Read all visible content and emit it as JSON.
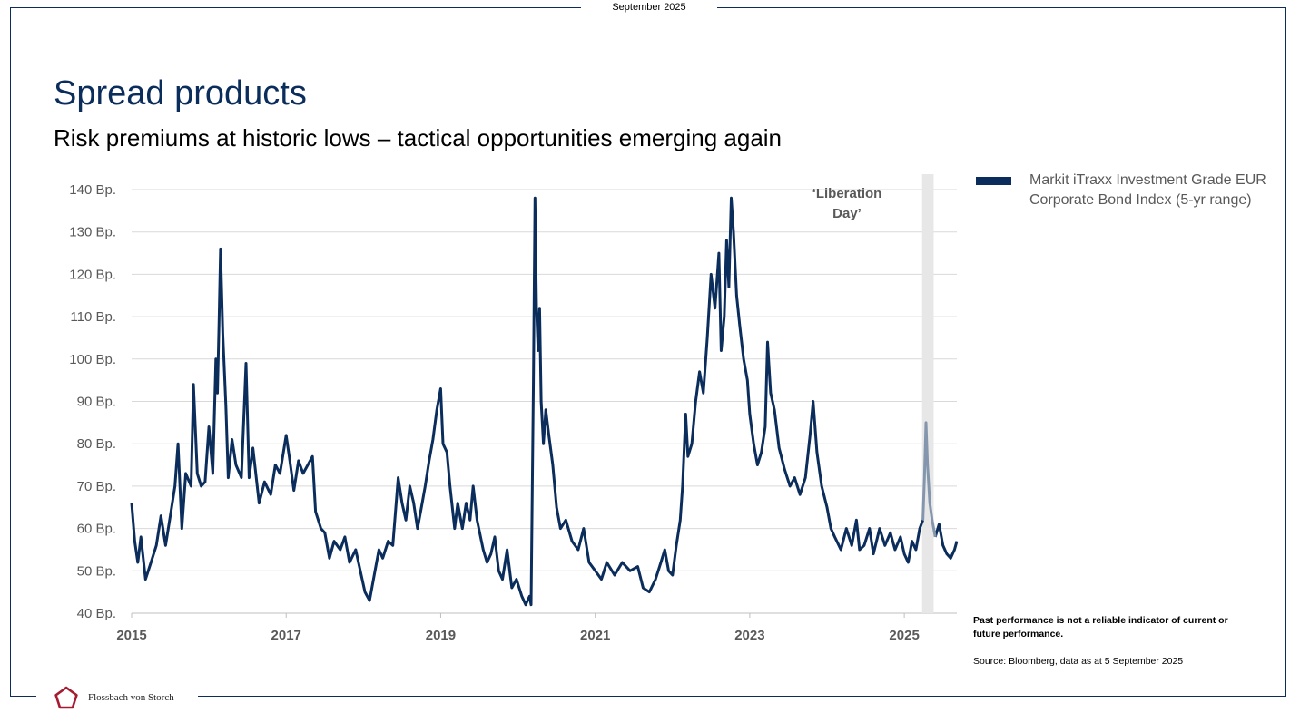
{
  "header": {
    "date": "September 2025"
  },
  "title": "Spread products",
  "subtitle": "Risk premiums at historic lows – tactical opportunities emerging again",
  "chart_data": {
    "type": "line",
    "ylim": [
      40,
      140
    ],
    "xlim": [
      2015,
      2025.68
    ],
    "y_ticks": [
      40,
      50,
      60,
      70,
      80,
      90,
      100,
      110,
      120,
      130,
      140
    ],
    "y_tick_suffix": " Bp.",
    "x_ticks": [
      2015,
      2017,
      2019,
      2021,
      2023,
      2025
    ],
    "grid": true,
    "legend": "right",
    "annotation": {
      "label_line1": "‘Liberation",
      "label_line2": "Day’",
      "x_start": 2025.23,
      "x_end": 2025.38
    },
    "series": [
      {
        "name": "Markit iTraxx Investment Grade EUR Corporate Bond Index (5-yr range)",
        "color": "#0b2d5c",
        "highlight_color": "#8496ad",
        "points": [
          [
            2015.0,
            66
          ],
          [
            2015.04,
            57
          ],
          [
            2015.08,
            52
          ],
          [
            2015.12,
            58
          ],
          [
            2015.18,
            48
          ],
          [
            2015.25,
            52
          ],
          [
            2015.32,
            56
          ],
          [
            2015.38,
            63
          ],
          [
            2015.44,
            56
          ],
          [
            2015.5,
            63
          ],
          [
            2015.56,
            70
          ],
          [
            2015.6,
            80
          ],
          [
            2015.65,
            60
          ],
          [
            2015.7,
            73
          ],
          [
            2015.77,
            70
          ],
          [
            2015.8,
            94
          ],
          [
            2015.85,
            73
          ],
          [
            2015.9,
            70
          ],
          [
            2015.95,
            71
          ],
          [
            2016.0,
            84
          ],
          [
            2016.05,
            73
          ],
          [
            2016.09,
            100
          ],
          [
            2016.11,
            92
          ],
          [
            2016.13,
            108
          ],
          [
            2016.15,
            126
          ],
          [
            2016.18,
            106
          ],
          [
            2016.22,
            89
          ],
          [
            2016.25,
            72
          ],
          [
            2016.3,
            81
          ],
          [
            2016.35,
            75
          ],
          [
            2016.42,
            72
          ],
          [
            2016.48,
            99
          ],
          [
            2016.52,
            72
          ],
          [
            2016.57,
            79
          ],
          [
            2016.65,
            66
          ],
          [
            2016.72,
            71
          ],
          [
            2016.8,
            68
          ],
          [
            2016.86,
            75
          ],
          [
            2016.92,
            73
          ],
          [
            2017.0,
            82
          ],
          [
            2017.04,
            77
          ],
          [
            2017.1,
            69
          ],
          [
            2017.16,
            76
          ],
          [
            2017.22,
            73
          ],
          [
            2017.28,
            75
          ],
          [
            2017.34,
            77
          ],
          [
            2017.38,
            64
          ],
          [
            2017.45,
            60
          ],
          [
            2017.5,
            59
          ],
          [
            2017.56,
            53
          ],
          [
            2017.62,
            57
          ],
          [
            2017.7,
            55
          ],
          [
            2017.76,
            58
          ],
          [
            2017.82,
            52
          ],
          [
            2017.9,
            55
          ],
          [
            2017.96,
            50
          ],
          [
            2018.02,
            45
          ],
          [
            2018.08,
            43
          ],
          [
            2018.15,
            50
          ],
          [
            2018.2,
            55
          ],
          [
            2018.25,
            53
          ],
          [
            2018.32,
            57
          ],
          [
            2018.38,
            56
          ],
          [
            2018.45,
            72
          ],
          [
            2018.5,
            66
          ],
          [
            2018.55,
            62
          ],
          [
            2018.6,
            70
          ],
          [
            2018.65,
            66
          ],
          [
            2018.7,
            60
          ],
          [
            2018.75,
            65
          ],
          [
            2018.8,
            70
          ],
          [
            2018.85,
            76
          ],
          [
            2018.9,
            81
          ],
          [
            2018.95,
            88
          ],
          [
            2019.0,
            93
          ],
          [
            2019.03,
            80
          ],
          [
            2019.08,
            78
          ],
          [
            2019.12,
            70
          ],
          [
            2019.18,
            60
          ],
          [
            2019.22,
            66
          ],
          [
            2019.28,
            60
          ],
          [
            2019.33,
            66
          ],
          [
            2019.38,
            62
          ],
          [
            2019.42,
            70
          ],
          [
            2019.47,
            62
          ],
          [
            2019.55,
            55
          ],
          [
            2019.6,
            52
          ],
          [
            2019.65,
            54
          ],
          [
            2019.7,
            58
          ],
          [
            2019.75,
            50
          ],
          [
            2019.8,
            48
          ],
          [
            2019.86,
            55
          ],
          [
            2019.92,
            46
          ],
          [
            2019.98,
            48
          ],
          [
            2020.05,
            44
          ],
          [
            2020.1,
            42
          ],
          [
            2020.15,
            44
          ],
          [
            2020.17,
            42
          ],
          [
            2020.2,
            95
          ],
          [
            2020.22,
            138
          ],
          [
            2020.24,
            112
          ],
          [
            2020.26,
            102
          ],
          [
            2020.28,
            112
          ],
          [
            2020.3,
            90
          ],
          [
            2020.33,
            80
          ],
          [
            2020.36,
            88
          ],
          [
            2020.4,
            82
          ],
          [
            2020.45,
            75
          ],
          [
            2020.5,
            65
          ],
          [
            2020.55,
            60
          ],
          [
            2020.62,
            62
          ],
          [
            2020.7,
            57
          ],
          [
            2020.78,
            55
          ],
          [
            2020.85,
            60
          ],
          [
            2020.92,
            52
          ],
          [
            2021.0,
            50
          ],
          [
            2021.08,
            48
          ],
          [
            2021.15,
            52
          ],
          [
            2021.25,
            49
          ],
          [
            2021.35,
            52
          ],
          [
            2021.45,
            50
          ],
          [
            2021.55,
            51
          ],
          [
            2021.62,
            46
          ],
          [
            2021.7,
            45
          ],
          [
            2021.78,
            48
          ],
          [
            2021.85,
            52
          ],
          [
            2021.9,
            55
          ],
          [
            2021.95,
            50
          ],
          [
            2022.0,
            49
          ],
          [
            2022.05,
            56
          ],
          [
            2022.1,
            62
          ],
          [
            2022.13,
            70
          ],
          [
            2022.17,
            87
          ],
          [
            2022.2,
            77
          ],
          [
            2022.25,
            80
          ],
          [
            2022.3,
            90
          ],
          [
            2022.35,
            97
          ],
          [
            2022.4,
            92
          ],
          [
            2022.45,
            105
          ],
          [
            2022.5,
            120
          ],
          [
            2022.55,
            112
          ],
          [
            2022.6,
            125
          ],
          [
            2022.63,
            102
          ],
          [
            2022.67,
            110
          ],
          [
            2022.7,
            128
          ],
          [
            2022.73,
            117
          ],
          [
            2022.76,
            138
          ],
          [
            2022.79,
            130
          ],
          [
            2022.83,
            115
          ],
          [
            2022.87,
            108
          ],
          [
            2022.92,
            100
          ],
          [
            2022.97,
            95
          ],
          [
            2023.0,
            87
          ],
          [
            2023.05,
            80
          ],
          [
            2023.1,
            75
          ],
          [
            2023.15,
            78
          ],
          [
            2023.2,
            84
          ],
          [
            2023.23,
            104
          ],
          [
            2023.27,
            92
          ],
          [
            2023.32,
            88
          ],
          [
            2023.38,
            79
          ],
          [
            2023.45,
            74
          ],
          [
            2023.52,
            70
          ],
          [
            2023.58,
            72
          ],
          [
            2023.65,
            68
          ],
          [
            2023.72,
            72
          ],
          [
            2023.78,
            82
          ],
          [
            2023.82,
            90
          ],
          [
            2023.87,
            78
          ],
          [
            2023.93,
            70
          ],
          [
            2024.0,
            65
          ],
          [
            2024.05,
            60
          ],
          [
            2024.1,
            58
          ],
          [
            2024.18,
            55
          ],
          [
            2024.25,
            60
          ],
          [
            2024.32,
            56
          ],
          [
            2024.38,
            62
          ],
          [
            2024.42,
            55
          ],
          [
            2024.48,
            56
          ],
          [
            2024.55,
            60
          ],
          [
            2024.6,
            54
          ],
          [
            2024.68,
            60
          ],
          [
            2024.75,
            56
          ],
          [
            2024.82,
            59
          ],
          [
            2024.88,
            55
          ],
          [
            2024.95,
            58
          ],
          [
            2025.0,
            54
          ],
          [
            2025.05,
            52
          ],
          [
            2025.1,
            57
          ],
          [
            2025.15,
            55
          ],
          [
            2025.2,
            60
          ],
          [
            2025.24,
            62
          ],
          [
            2025.26,
            72
          ],
          [
            2025.28,
            85
          ],
          [
            2025.3,
            75
          ],
          [
            2025.33,
            66
          ],
          [
            2025.36,
            62
          ],
          [
            2025.4,
            58
          ],
          [
            2025.45,
            61
          ],
          [
            2025.5,
            56
          ],
          [
            2025.55,
            54
          ],
          [
            2025.6,
            53
          ],
          [
            2025.65,
            55
          ],
          [
            2025.68,
            57
          ]
        ]
      }
    ]
  },
  "footnotes": {
    "disclaimer": "Past performance is not a reliable indicator of current or future performance.",
    "source": "Source: Bloomberg, data as at 5 September 2025"
  },
  "footer": {
    "logo_text": "Flossbach von Storch"
  }
}
